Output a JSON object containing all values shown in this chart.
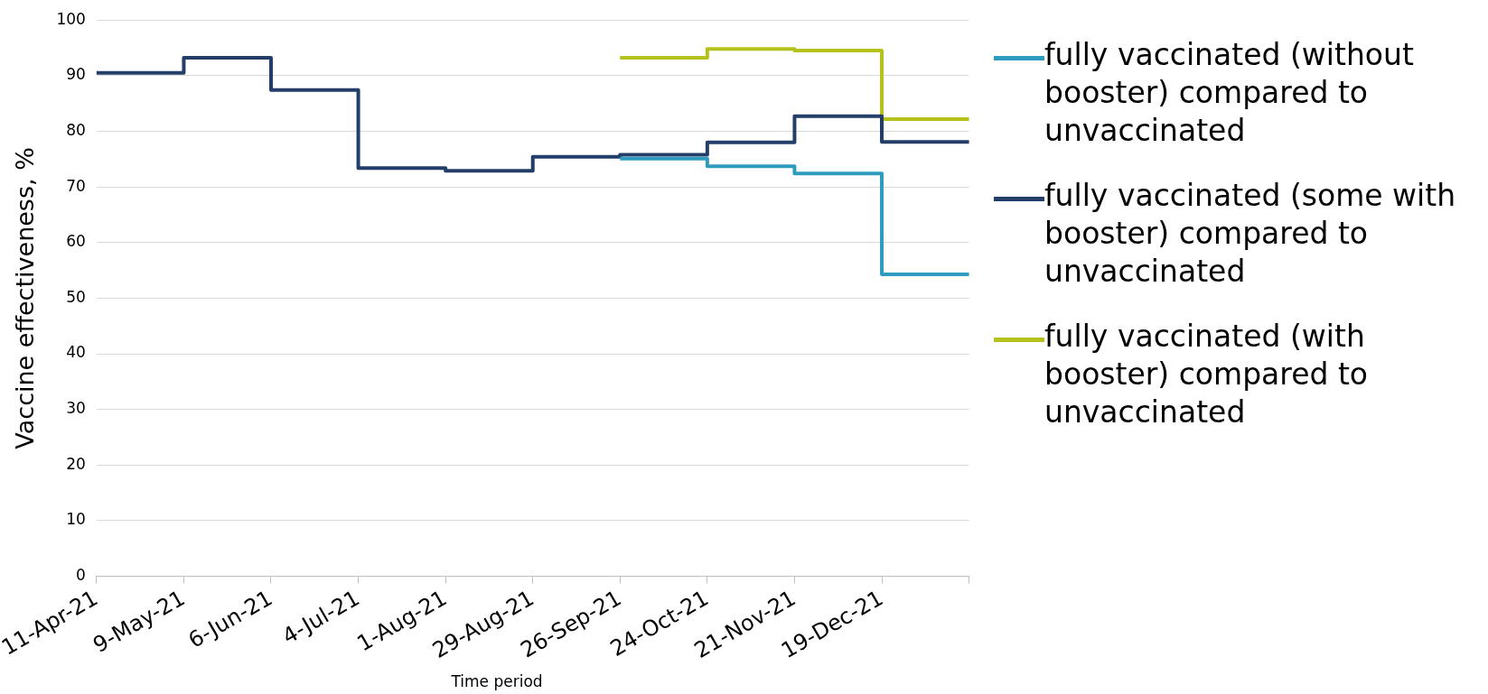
{
  "chart_data": {
    "type": "step",
    "xlabel": "Time period",
    "ylabel": "Vaccine effectiveness, %",
    "categories": [
      "11-Apr-21",
      "9-May-21",
      "6-Jun-21",
      "4-Jul-21",
      "1-Aug-21",
      "29-Aug-21",
      "26-Sep-21",
      "24-Oct-21",
      "21-Nov-21",
      "19-Dec-21",
      null
    ],
    "series": [
      {
        "name": "fully vaccinated (without booster) compared to unvaccinated",
        "color": "#2e9bbf",
        "values": [
          null,
          null,
          null,
          null,
          null,
          null,
          75.1,
          73.7,
          72.4,
          54.3,
          54.3
        ]
      },
      {
        "name": "fully vaccinated (some with booster) compared to unvaccinated",
        "color": "#243e6a",
        "values": [
          90.5,
          93.2,
          87.4,
          73.4,
          72.9,
          75.4,
          75.8,
          78.0,
          82.7,
          78.1,
          78.1
        ]
      },
      {
        "name": "fully vaccinated (with booster) compared to unvaccinated",
        "color": "#b5c21c",
        "values": [
          null,
          null,
          null,
          null,
          null,
          null,
          93.2,
          94.8,
          94.5,
          82.2,
          82.2
        ]
      }
    ],
    "ylim": [
      0,
      100
    ],
    "yticks": [
      0,
      10,
      20,
      30,
      40,
      50,
      60,
      70,
      80,
      90,
      100
    ],
    "grid": "y",
    "legend": "right",
    "line_style": "solid",
    "marker": "none"
  }
}
